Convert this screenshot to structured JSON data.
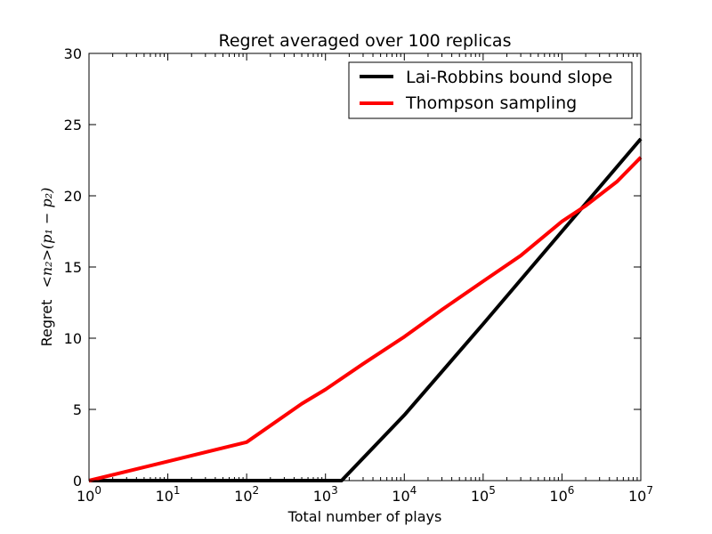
{
  "chart_data": {
    "type": "line",
    "title": "Regret averaged over 100 replicas",
    "xlabel": "Total number of plays",
    "ylabel_prefix": "Regret",
    "ylabel_math": "<n₂>(p₁ − p₂)",
    "xscale": "log",
    "xlim": [
      1,
      10000000
    ],
    "ylim": [
      0,
      30
    ],
    "x_ticks": [
      {
        "base": "10",
        "exp": "0"
      },
      {
        "base": "10",
        "exp": "1"
      },
      {
        "base": "10",
        "exp": "2"
      },
      {
        "base": "10",
        "exp": "3"
      },
      {
        "base": "10",
        "exp": "4"
      },
      {
        "base": "10",
        "exp": "5"
      },
      {
        "base": "10",
        "exp": "6"
      },
      {
        "base": "10",
        "exp": "7"
      }
    ],
    "y_ticks": [
      "0",
      "5",
      "10",
      "15",
      "20",
      "25",
      "30"
    ],
    "grid": false,
    "legend_position": "top-right",
    "series": [
      {
        "name": "Lai-Robbins bound slope",
        "color": "#000000",
        "x": [
          1,
          100,
          1000,
          1600,
          10000,
          100000,
          1000000,
          10000000
        ],
        "y": [
          0,
          0,
          0,
          0,
          4.6,
          11.0,
          17.5,
          24.0
        ]
      },
      {
        "name": "Thompson sampling",
        "color": "#ff0000",
        "x": [
          1,
          10,
          100,
          500,
          1000,
          3000,
          10000,
          20000,
          30000,
          100000,
          300000,
          1000000,
          2000000,
          5000000,
          10000000
        ],
        "y": [
          0.0,
          1.35,
          2.7,
          5.4,
          6.4,
          8.2,
          10.1,
          11.3,
          12.0,
          14.0,
          15.8,
          18.2,
          19.3,
          21.0,
          22.7
        ]
      }
    ]
  }
}
